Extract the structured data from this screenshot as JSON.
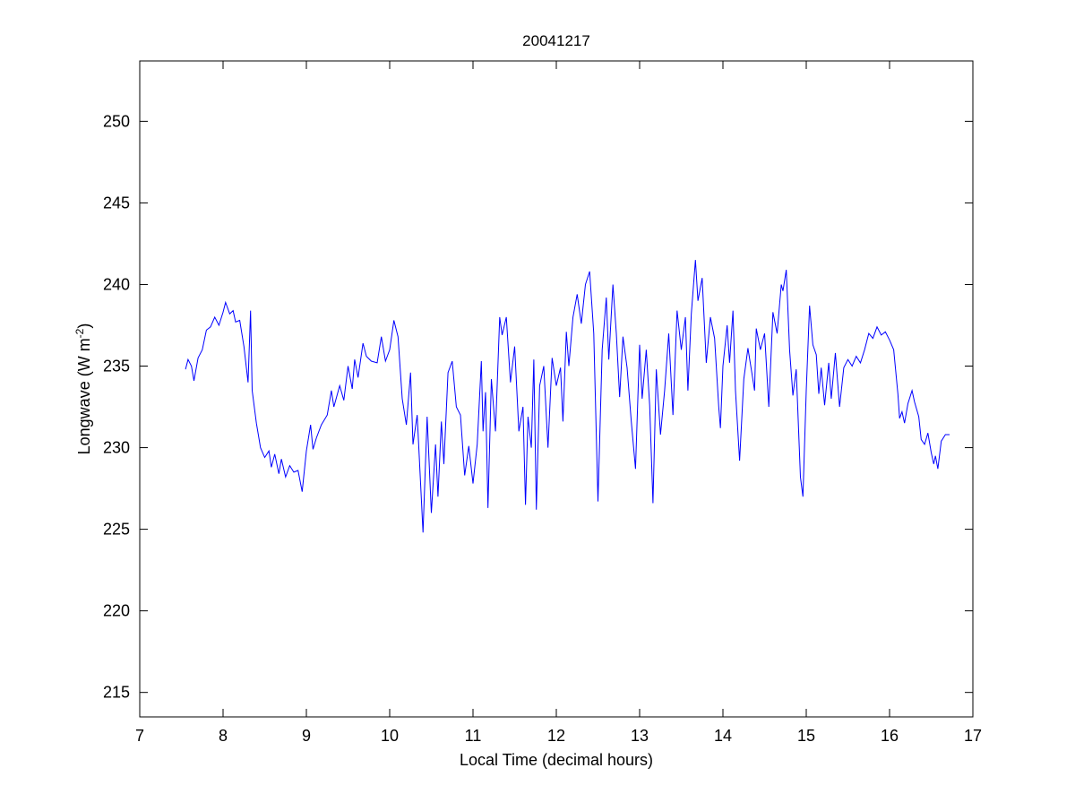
{
  "chart_data": {
    "type": "line",
    "title": "20041217",
    "xlabel": "Local Time (decimal hours)",
    "ylabel": {
      "base": "Longwave (W m",
      "superscript": "-2",
      "close": ")"
    },
    "xlim": [
      7,
      17
    ],
    "ylim": [
      213.5,
      253.7
    ],
    "xticks": [
      7,
      8,
      9,
      10,
      11,
      12,
      13,
      14,
      15,
      16,
      17
    ],
    "yticks": [
      215,
      220,
      225,
      230,
      235,
      240,
      245,
      250
    ],
    "grid": false,
    "line_color": "#0000ff",
    "series": [
      {
        "x": [
          7.55,
          7.58,
          7.62,
          7.65,
          7.7,
          7.75,
          7.8,
          7.85,
          7.9,
          7.95,
          8.0,
          8.03,
          8.08,
          8.12,
          8.15,
          8.2,
          8.25,
          8.3,
          8.33,
          8.35,
          8.4,
          8.45,
          8.5,
          8.55,
          8.58,
          8.62,
          8.67,
          8.7,
          8.75,
          8.8,
          8.85,
          8.9,
          8.95,
          9.0,
          9.05,
          9.08,
          9.12,
          9.18,
          9.25,
          9.3,
          9.33,
          9.4,
          9.45,
          9.5,
          9.55,
          9.58,
          9.62,
          9.68,
          9.72,
          9.78,
          9.85,
          9.9,
          9.95,
          10.0,
          10.05,
          10.1,
          10.15,
          10.2,
          10.25,
          10.28,
          10.33,
          10.4,
          10.45,
          10.5,
          10.55,
          10.58,
          10.62,
          10.65,
          10.7,
          10.75,
          10.8,
          10.85,
          10.9,
          10.95,
          11.0,
          11.05,
          11.1,
          11.12,
          11.15,
          11.18,
          11.22,
          11.27,
          11.32,
          11.35,
          11.4,
          11.45,
          11.5,
          11.55,
          11.6,
          11.63,
          11.66,
          11.7,
          11.73,
          11.76,
          11.8,
          11.85,
          11.9,
          11.95,
          12.0,
          12.05,
          12.08,
          12.12,
          12.15,
          12.2,
          12.25,
          12.3,
          12.35,
          12.4,
          12.45,
          12.5,
          12.55,
          12.6,
          12.63,
          12.68,
          12.72,
          12.76,
          12.8,
          12.85,
          12.9,
          12.95,
          13.0,
          13.03,
          13.08,
          13.12,
          13.16,
          13.2,
          13.25,
          13.3,
          13.35,
          13.4,
          13.45,
          13.5,
          13.55,
          13.58,
          13.62,
          13.67,
          13.7,
          13.75,
          13.8,
          13.85,
          13.9,
          13.95,
          13.97,
          14.0,
          14.05,
          14.08,
          14.12,
          14.15,
          14.2,
          14.25,
          14.3,
          14.35,
          14.38,
          14.4,
          14.45,
          14.5,
          14.55,
          14.6,
          14.65,
          14.7,
          14.72,
          14.76,
          14.8,
          14.84,
          14.88,
          14.93,
          14.96,
          15.0,
          15.04,
          15.08,
          15.12,
          15.15,
          15.18,
          15.22,
          15.27,
          15.3,
          15.35,
          15.4,
          15.45,
          15.5,
          15.55,
          15.6,
          15.65,
          15.7,
          15.75,
          15.8,
          15.85,
          15.9,
          15.95,
          16.0,
          16.05,
          16.1,
          16.12,
          16.15,
          16.18,
          16.22,
          16.27,
          16.3,
          16.35,
          16.38,
          16.42,
          16.46,
          16.5,
          16.53,
          16.55,
          16.58,
          16.62,
          16.67,
          16.72
        ],
        "y": [
          234.8,
          235.4,
          235.0,
          234.1,
          235.5,
          236.0,
          237.2,
          237.4,
          238.0,
          237.5,
          238.3,
          238.9,
          238.2,
          238.4,
          237.7,
          237.8,
          236.2,
          234.0,
          238.4,
          233.5,
          231.5,
          230.0,
          229.4,
          229.8,
          228.8,
          229.6,
          228.4,
          229.3,
          228.2,
          228.9,
          228.5,
          228.6,
          227.3,
          229.8,
          231.4,
          229.9,
          230.6,
          231.4,
          232.0,
          233.5,
          232.5,
          233.8,
          232.9,
          235.0,
          233.6,
          235.4,
          234.3,
          236.4,
          235.6,
          235.3,
          235.2,
          236.8,
          235.3,
          236.0,
          237.8,
          236.8,
          233.0,
          231.4,
          234.6,
          230.2,
          232.0,
          224.8,
          231.9,
          226.0,
          230.2,
          227.0,
          231.6,
          229.0,
          234.6,
          235.3,
          232.5,
          232.0,
          228.3,
          230.1,
          227.8,
          230.2,
          235.3,
          231.0,
          233.4,
          226.3,
          234.2,
          231.0,
          238.0,
          236.9,
          238.0,
          234.0,
          236.2,
          231.0,
          232.5,
          226.5,
          231.9,
          230.0,
          235.4,
          226.2,
          233.8,
          235.0,
          230.0,
          235.5,
          233.8,
          234.9,
          231.6,
          237.1,
          235.0,
          238.0,
          239.4,
          237.6,
          240.0,
          240.8,
          237.0,
          226.7,
          236.0,
          239.2,
          235.4,
          240.0,
          237.0,
          233.1,
          236.8,
          234.9,
          231.6,
          228.7,
          236.3,
          233.0,
          236.0,
          232.6,
          226.6,
          234.8,
          230.8,
          233.5,
          237.0,
          232.0,
          238.4,
          236.0,
          238.0,
          233.5,
          238.2,
          241.5,
          239.0,
          240.4,
          235.2,
          238.0,
          236.7,
          232.5,
          231.2,
          235.0,
          237.5,
          235.2,
          238.4,
          233.5,
          229.2,
          234.2,
          236.1,
          234.5,
          233.5,
          237.3,
          236.0,
          237.0,
          232.5,
          238.3,
          237.0,
          240.0,
          239.6,
          240.9,
          236.0,
          233.2,
          234.8,
          228.2,
          227.0,
          233.5,
          238.7,
          236.3,
          235.7,
          233.3,
          234.9,
          232.6,
          235.2,
          233.0,
          235.8,
          232.5,
          234.9,
          235.4,
          235.0,
          235.6,
          235.2,
          236.0,
          237.0,
          236.7,
          237.4,
          236.9,
          237.1,
          236.6,
          236.0,
          233.3,
          231.8,
          232.2,
          231.5,
          232.7,
          233.5,
          232.8,
          231.9,
          230.5,
          230.2,
          230.9,
          229.7,
          229.0,
          229.5,
          228.7,
          230.4,
          230.8,
          230.8
        ]
      }
    ]
  }
}
